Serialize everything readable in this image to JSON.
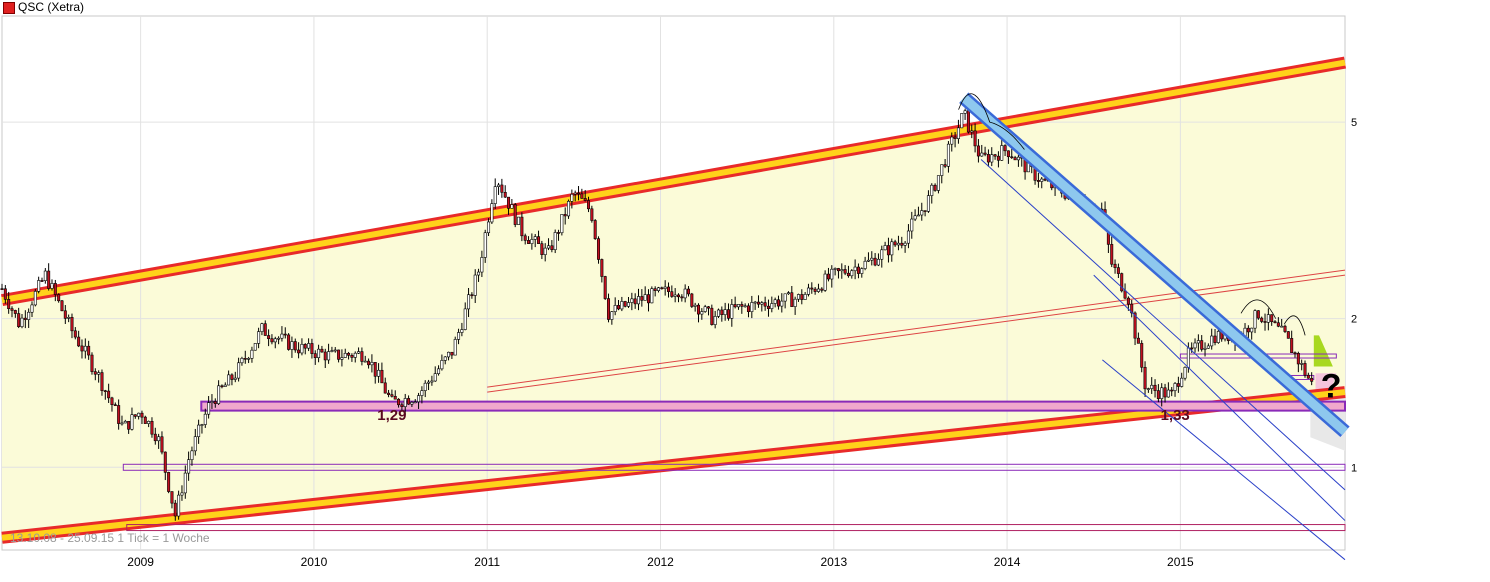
{
  "chart_data": {
    "type": "candlestick",
    "title": "QSC (Xetra)",
    "info": "13.10.08 - 25.09.15   1 Tick = 1 Woche",
    "x_labels": [
      "2009",
      "2010",
      "2011",
      "2012",
      "2013",
      "2014",
      "2015"
    ],
    "x_range": [
      2008.2,
      2015.95
    ],
    "y_scale": "log",
    "y_ticks": [
      1,
      2,
      5
    ],
    "y_tick_labels": [
      "1",
      "2",
      "5"
    ],
    "ylim": [
      0.68,
      8.2
    ],
    "grid": true,
    "annotations": [
      {
        "label": "1,29",
        "x": 2010.45,
        "y": 1.29
      },
      {
        "label": "1,33",
        "x": 2014.97,
        "y": 1.33
      },
      {
        "label": "?",
        "x": 2015.87,
        "y": 1.45
      }
    ],
    "close_path": [
      [
        2008.2,
        2.3
      ],
      [
        2008.3,
        1.95
      ],
      [
        2008.45,
        2.45
      ],
      [
        2008.6,
        1.9
      ],
      [
        2008.75,
        1.55
      ],
      [
        2008.9,
        1.2
      ],
      [
        2009.0,
        1.3
      ],
      [
        2009.1,
        1.15
      ],
      [
        2009.2,
        0.8
      ],
      [
        2009.28,
        1.05
      ],
      [
        2009.4,
        1.35
      ],
      [
        2009.55,
        1.55
      ],
      [
        2009.7,
        1.9
      ],
      [
        2009.9,
        1.75
      ],
      [
        2010.1,
        1.68
      ],
      [
        2010.3,
        1.7
      ],
      [
        2010.45,
        1.35
      ],
      [
        2010.6,
        1.4
      ],
      [
        2010.8,
        1.72
      ],
      [
        2010.95,
        2.5
      ],
      [
        2011.05,
        3.9
      ],
      [
        2011.2,
        3.0
      ],
      [
        2011.35,
        2.7
      ],
      [
        2011.5,
        3.6
      ],
      [
        2011.6,
        3.3
      ],
      [
        2011.7,
        2.05
      ],
      [
        2011.9,
        2.2
      ],
      [
        2012.1,
        2.3
      ],
      [
        2012.3,
        2.0
      ],
      [
        2012.45,
        2.1
      ],
      [
        2012.6,
        2.15
      ],
      [
        2012.8,
        2.2
      ],
      [
        2013.0,
        2.45
      ],
      [
        2013.2,
        2.6
      ],
      [
        2013.4,
        2.9
      ],
      [
        2013.55,
        3.5
      ],
      [
        2013.75,
        5.2
      ],
      [
        2013.85,
        4.2
      ],
      [
        2014.0,
        4.4
      ],
      [
        2014.2,
        3.8
      ],
      [
        2014.4,
        3.5
      ],
      [
        2014.55,
        3.3
      ],
      [
        2014.6,
        2.6
      ],
      [
        2014.7,
        2.2
      ],
      [
        2014.8,
        1.45
      ],
      [
        2014.95,
        1.4
      ],
      [
        2015.05,
        1.7
      ],
      [
        2015.2,
        1.85
      ],
      [
        2015.35,
        1.85
      ],
      [
        2015.45,
        2.05
      ],
      [
        2015.6,
        1.85
      ],
      [
        2015.7,
        1.6
      ],
      [
        2015.77,
        1.45
      ]
    ]
  }
}
